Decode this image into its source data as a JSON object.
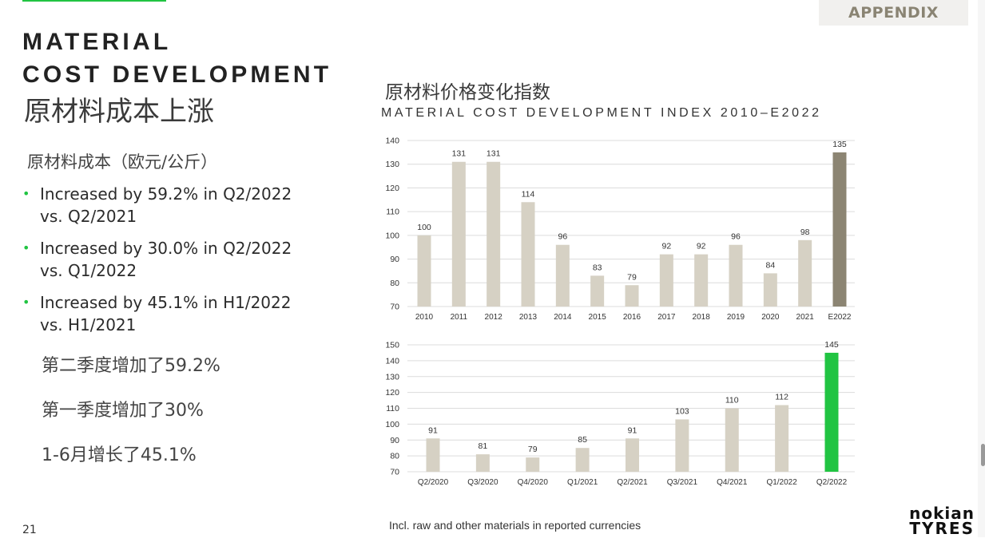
{
  "header": {
    "appendix_label": "APPENDIX"
  },
  "left": {
    "title_en_line1": "MATERIAL",
    "title_en_line2": "COST DEVELOPMENT",
    "title_cn": "原材料成本上涨",
    "subtitle_cn": "原材料成本（欧元/公斤）",
    "bullets": [
      {
        "line1": "Increased by 59.2% in Q2/2022",
        "line2": "vs. Q2/2021"
      },
      {
        "line1": "Increased by 30.0% in Q2/2022",
        "line2": "vs. Q1/2022"
      },
      {
        "line1": "Increased by 45.1% in H1/2022",
        "line2": "vs. H1/2021"
      }
    ],
    "cn_notes": [
      "第二季度增加了59.2%",
      "第一季度增加了30%",
      "1-6月增长了45.1%"
    ]
  },
  "chart_header": {
    "title_cn": "原材料价格变化指数",
    "title_en": "MATERIAL COST DEVELOPMENT INDEX 2010–E2022"
  },
  "chart_data": [
    {
      "type": "bar",
      "categories": [
        "2010",
        "2011",
        "2012",
        "2013",
        "2014",
        "2015",
        "2016",
        "2017",
        "2018",
        "2019",
        "2020",
        "2021",
        "E2022"
      ],
      "values": [
        100,
        131,
        131,
        114,
        96,
        83,
        79,
        92,
        92,
        96,
        84,
        98,
        135
      ],
      "yticks": [
        70,
        80,
        90,
        100,
        110,
        120,
        130,
        140
      ],
      "ylim": [
        70,
        140
      ],
      "grid": true,
      "colors": {
        "default": "#d6d1c4",
        "highlight": "#8c8573"
      },
      "highlight_index": 12
    },
    {
      "type": "bar",
      "categories": [
        "Q2/2020",
        "Q3/2020",
        "Q4/2020",
        "Q1/2021",
        "Q2/2021",
        "Q3/2021",
        "Q4/2021",
        "Q1/2022",
        "Q2/2022"
      ],
      "values": [
        91,
        81,
        79,
        85,
        91,
        103,
        110,
        112,
        145
      ],
      "yticks": [
        70,
        80,
        90,
        100,
        110,
        120,
        130,
        140,
        150
      ],
      "ylim": [
        70,
        150
      ],
      "grid": true,
      "colors": {
        "default": "#d6d1c4",
        "highlight": "#21c442"
      },
      "highlight_index": 8
    }
  ],
  "footer": {
    "page_number": "21",
    "footnote": "Incl. raw and other materials in reported currencies",
    "logo_line1": "nokian",
    "logo_line2": "TYRES"
  }
}
